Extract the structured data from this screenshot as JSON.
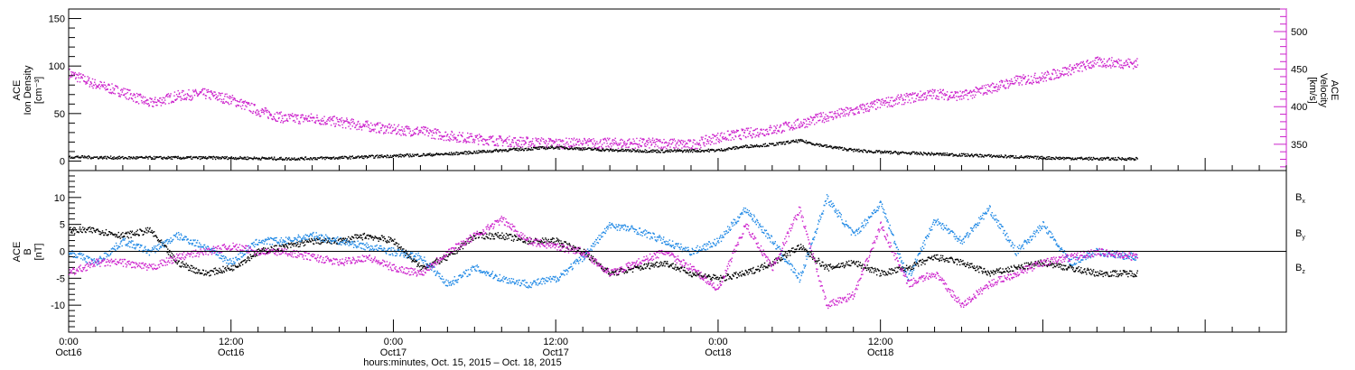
{
  "colors": {
    "density": "#000000",
    "velocity": "#cc22cc",
    "bx": "#000000",
    "by": "#1e88e5",
    "bz": "#cc22cc",
    "frame": "#000000"
  },
  "chart_data": [
    {
      "type": "scatter",
      "panel": "top",
      "ylabel_left": [
        "ACE",
        "Ion Density",
        "[cm⁻³]"
      ],
      "ylabel_right": [
        "ACE",
        "Velocity",
        "[km/s]"
      ],
      "ylim_left": [
        -10,
        160
      ],
      "ylim_right": [
        315,
        530
      ],
      "yticks_left": [
        0,
        50,
        100,
        150
      ],
      "yticks_left_labels": [
        "0",
        "50",
        "100",
        "150"
      ],
      "yticks_right": [
        350,
        400,
        450,
        500
      ],
      "yticks_right_labels": [
        "350",
        "400",
        "450",
        "500"
      ],
      "series": [
        {
          "axis": "left",
          "color_key": "density",
          "x_hours": [
            0,
            4,
            8,
            12,
            16,
            20,
            24,
            28,
            32,
            36,
            40,
            44,
            48,
            50,
            52,
            54,
            56,
            58,
            60,
            64,
            68,
            72,
            76,
            79
          ],
          "y": [
            5,
            4,
            4,
            4,
            3,
            4,
            6,
            8,
            12,
            15,
            12,
            11,
            12,
            16,
            18,
            22,
            16,
            12,
            10,
            8,
            6,
            4,
            3,
            3
          ]
        },
        {
          "axis": "right",
          "color_key": "velocity",
          "x_hours": [
            0,
            2,
            4,
            6,
            8,
            10,
            12,
            14,
            16,
            18,
            20,
            22,
            24,
            26,
            28,
            30,
            32,
            36,
            40,
            44,
            46,
            48,
            50,
            52,
            54,
            56,
            58,
            60,
            62,
            64,
            66,
            68,
            70,
            72,
            74,
            76,
            79
          ],
          "y": [
            445,
            430,
            420,
            405,
            415,
            418,
            410,
            395,
            385,
            385,
            380,
            375,
            370,
            368,
            362,
            358,
            355,
            352,
            352,
            352,
            350,
            360,
            365,
            370,
            378,
            388,
            395,
            405,
            412,
            418,
            415,
            425,
            435,
            440,
            450,
            460,
            458
          ]
        }
      ]
    },
    {
      "type": "scatter",
      "panel": "bottom",
      "ylabel_left": [
        "ACE",
        "B",
        "[nT]"
      ],
      "ylim": [
        -15,
        15
      ],
      "yticks": [
        -10,
        -5,
        0,
        5,
        10
      ],
      "ytick_labels": [
        "-10",
        "-5",
        "0",
        "5",
        "10"
      ],
      "zero_line": true,
      "legend_position": "right",
      "series": [
        {
          "name": "Bx",
          "label_main": "B",
          "label_sub": "x",
          "color_key": "bx",
          "x_hours": [
            0,
            2,
            4,
            6,
            8,
            10,
            12,
            14,
            16,
            18,
            20,
            22,
            24,
            26,
            28,
            30,
            32,
            34,
            36,
            38,
            40,
            42,
            44,
            46,
            48,
            50,
            52,
            54,
            56,
            58,
            60,
            62,
            64,
            66,
            68,
            70,
            72,
            74,
            76,
            79
          ],
          "y": [
            4,
            4,
            3,
            4,
            -2,
            -4,
            -3,
            0,
            1,
            2,
            2,
            3,
            2,
            -3,
            -1,
            3,
            3,
            2,
            2,
            0,
            -4,
            -3,
            -2,
            -4,
            -5,
            -4,
            -2,
            1,
            -3,
            -2,
            -4,
            -3,
            -1,
            -2,
            -4,
            -3,
            -2,
            -3,
            -4,
            -4
          ]
        },
        {
          "name": "By",
          "label_main": "B",
          "label_sub": "y",
          "color_key": "by",
          "x_hours": [
            0,
            2,
            4,
            6,
            8,
            10,
            12,
            14,
            16,
            18,
            20,
            22,
            24,
            26,
            28,
            30,
            32,
            34,
            36,
            38,
            40,
            42,
            44,
            46,
            48,
            50,
            52,
            54,
            56,
            58,
            60,
            62,
            64,
            66,
            68,
            70,
            72,
            74,
            76,
            79
          ],
          "y": [
            0,
            -2,
            2,
            0,
            3,
            1,
            -2,
            2,
            2,
            3,
            2,
            1,
            0,
            -1,
            -6,
            -3,
            -5,
            -6,
            -5,
            -1,
            5,
            4,
            2,
            0,
            2,
            8,
            2,
            -5,
            10,
            3,
            9,
            -5,
            6,
            2,
            8,
            0,
            5,
            -2,
            0,
            -1
          ]
        },
        {
          "name": "Bz",
          "label_main": "B",
          "label_sub": "z",
          "color_key": "bz",
          "x_hours": [
            0,
            2,
            4,
            6,
            8,
            10,
            12,
            14,
            16,
            18,
            20,
            22,
            24,
            26,
            28,
            30,
            32,
            34,
            36,
            38,
            40,
            42,
            44,
            46,
            48,
            50,
            52,
            54,
            56,
            58,
            60,
            62,
            64,
            66,
            68,
            70,
            72,
            74,
            76,
            79
          ],
          "y": [
            -4,
            -2,
            -2,
            -3,
            -1,
            0,
            1,
            0,
            0,
            -1,
            -2,
            -1,
            -3,
            -4,
            0,
            3,
            6,
            2,
            1,
            0,
            -4,
            -2,
            0,
            -3,
            -7,
            5,
            -3,
            8,
            -10,
            -8,
            5,
            -6,
            -4,
            -10,
            -6,
            -4,
            -2,
            -1,
            0,
            -1
          ]
        }
      ]
    }
  ],
  "x_axis": {
    "range_hours": [
      0,
      90
    ],
    "tick_every_hours": 12,
    "tick_hours": [
      0,
      12,
      24,
      36,
      48,
      60
    ],
    "tick_labels_time": [
      "0:00",
      "12:00",
      "0:00",
      "12:00",
      "0:00",
      "12:00"
    ],
    "tick_labels_date": [
      "Oct16",
      "Oct16",
      "Oct17",
      "Oct17",
      "Oct18",
      "Oct18"
    ],
    "title": "hours:minutes, Oct. 15, 2015 – Oct. 18, 2015"
  }
}
